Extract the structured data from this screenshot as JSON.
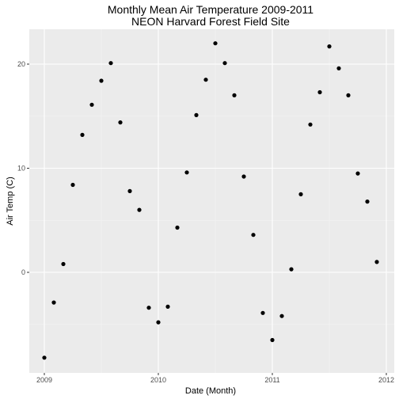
{
  "chart_data": {
    "type": "scatter",
    "title": "Monthly Mean Air Temperature 2009-2011",
    "subtitle": "NEON Harvard Forest Field Site",
    "xlabel": "Date (Month)",
    "ylabel": "Air Temp (C)",
    "x_tick_labels": [
      "2009",
      "2010",
      "2011",
      "2012"
    ],
    "y_tick_labels": [
      "0",
      "10",
      "20"
    ],
    "grid": true,
    "panel_color": "#ebebeb",
    "point_color": "#000000",
    "points": [
      {
        "x": "2009-01",
        "y": -8.2
      },
      {
        "x": "2009-02",
        "y": -2.9
      },
      {
        "x": "2009-03",
        "y": 0.8
      },
      {
        "x": "2009-04",
        "y": 8.4
      },
      {
        "x": "2009-05",
        "y": 13.2
      },
      {
        "x": "2009-06",
        "y": 16.1
      },
      {
        "x": "2009-07",
        "y": 18.4
      },
      {
        "x": "2009-08",
        "y": 20.1
      },
      {
        "x": "2009-09",
        "y": 14.4
      },
      {
        "x": "2009-10",
        "y": 7.8
      },
      {
        "x": "2009-11",
        "y": 6.0
      },
      {
        "x": "2009-12",
        "y": -3.4
      },
      {
        "x": "2010-01",
        "y": -4.8
      },
      {
        "x": "2010-02",
        "y": -3.3
      },
      {
        "x": "2010-03",
        "y": 4.3
      },
      {
        "x": "2010-04",
        "y": 9.6
      },
      {
        "x": "2010-05",
        "y": 15.1
      },
      {
        "x": "2010-06",
        "y": 18.5
      },
      {
        "x": "2010-07",
        "y": 22.0
      },
      {
        "x": "2010-08",
        "y": 20.1
      },
      {
        "x": "2010-09",
        "y": 17.0
      },
      {
        "x": "2010-10",
        "y": 9.2
      },
      {
        "x": "2010-11",
        "y": 3.6
      },
      {
        "x": "2010-12",
        "y": -3.9
      },
      {
        "x": "2011-01",
        "y": -6.5
      },
      {
        "x": "2011-02",
        "y": -4.2
      },
      {
        "x": "2011-03",
        "y": 0.3
      },
      {
        "x": "2011-04",
        "y": 7.5
      },
      {
        "x": "2011-05",
        "y": 14.2
      },
      {
        "x": "2011-06",
        "y": 17.3
      },
      {
        "x": "2011-07",
        "y": 21.7
      },
      {
        "x": "2011-08",
        "y": 19.6
      },
      {
        "x": "2011-09",
        "y": 17.0
      },
      {
        "x": "2011-10",
        "y": 9.5
      },
      {
        "x": "2011-11",
        "y": 6.8
      },
      {
        "x": "2011-12",
        "y": 1.0
      }
    ]
  }
}
